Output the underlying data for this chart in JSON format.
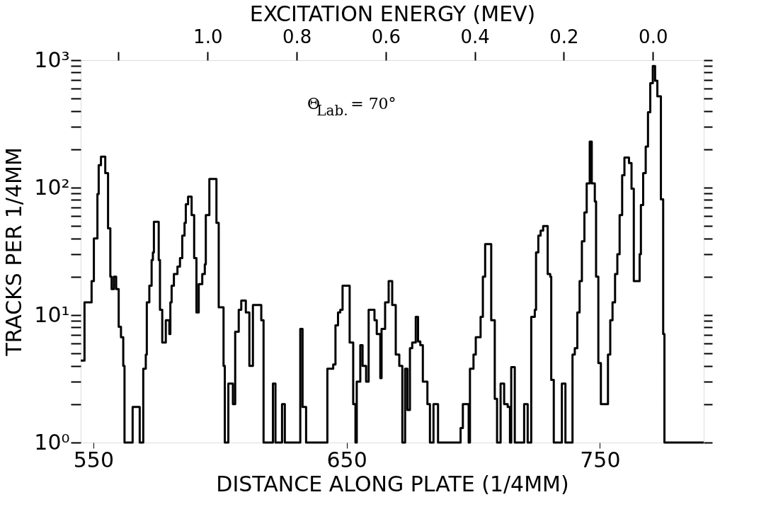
{
  "chart_data": {
    "type": "step",
    "x2label": "EXCITATION ENERGY (MEV)",
    "xlabel": "DISTANCE ALONG PLATE (1/4MM)",
    "ylabel": "TRACKS PER 1/4MM",
    "annotations": [
      "Θ$_{Lab.}$= 70°"
    ],
    "log": "y",
    "grid": false,
    "line_style": "solid",
    "color": "#000000",
    "xlim": [
      545,
      791
    ],
    "xticks": [
      550,
      650,
      750
    ],
    "x2lim": [
      1.285,
      -0.114
    ],
    "x2ticks": [
      {
        "value": 1.2,
        "label": null
      },
      {
        "value": 1.0,
        "label": "1.0"
      },
      {
        "value": 0.8,
        "label": "0.8"
      },
      {
        "value": 0.6,
        "label": "0.6"
      },
      {
        "value": 0.4,
        "label": "0.4"
      },
      {
        "value": 0.2,
        "label": "0.2"
      },
      {
        "value": 0.0,
        "label": "0.0"
      }
    ],
    "ylim": [
      1,
      1000
    ],
    "yticks": [
      {
        "value": 1,
        "label": "10⁰"
      },
      {
        "value": 2,
        "label": null
      },
      {
        "value": 3,
        "label": null
      },
      {
        "value": 4,
        "label": null
      },
      {
        "value": 5,
        "label": null
      },
      {
        "value": 6,
        "label": null
      },
      {
        "value": 7,
        "label": null
      },
      {
        "value": 8,
        "label": null
      },
      {
        "value": 9,
        "label": null
      },
      {
        "value": 10,
        "label": "10¹"
      },
      {
        "value": 20,
        "label": null
      },
      {
        "value": 30,
        "label": null
      },
      {
        "value": 40,
        "label": null
      },
      {
        "value": 50,
        "label": null
      },
      {
        "value": 60,
        "label": null
      },
      {
        "value": 70,
        "label": null
      },
      {
        "value": 80,
        "label": null
      },
      {
        "value": 90,
        "label": null
      },
      {
        "value": 100,
        "label": "10²"
      },
      {
        "value": 200,
        "label": null
      },
      {
        "value": 300,
        "label": null
      },
      {
        "value": 400,
        "label": null
      },
      {
        "value": 500,
        "label": null
      },
      {
        "value": 600,
        "label": null
      },
      {
        "value": 700,
        "label": null
      },
      {
        "value": 800,
        "label": null
      },
      {
        "value": 900,
        "label": null
      },
      {
        "value": 1000,
        "label": "10³"
      }
    ],
    "x": [
      545,
      546.5,
      549.3,
      550.2,
      551.6,
      552.1,
      553.0,
      554.7,
      555.8,
      556.7,
      557.2,
      558.1,
      559.0,
      560.0,
      560.9,
      561.8,
      562.3,
      565.5,
      568.3,
      569.7,
      570.7,
      571.1,
      572.1,
      573.0,
      573.5,
      573.9,
      575.8,
      576.3,
      577.2,
      578.6,
      580.0,
      580.4,
      580.9,
      581.8,
      583.2,
      584.2,
      585.1,
      586.0,
      586.5,
      587.4,
      588.8,
      589.8,
      590.7,
      591.6,
      593.0,
      594.0,
      594.4,
      595.8,
      598.6,
      599.5,
      601.4,
      601.9,
      603.3,
      605.1,
      606.0,
      607.4,
      608.4,
      610.2,
      611.6,
      613.0,
      616.3,
      617.2,
      620.9,
      621.9,
      624.5,
      625.6,
      631.7,
      632.6,
      634.0,
      642.4,
      644.7,
      645.6,
      646.6,
      647.5,
      648.4,
      651.2,
      652.6,
      653.5,
      654.0,
      655.4,
      656.3,
      657.7,
      658.7,
      661.0,
      661.9,
      663.3,
      663.8,
      665.2,
      666.6,
      668.0,
      669.4,
      670.8,
      672.0,
      673.1,
      674.0,
      675.0,
      675.9,
      677.3,
      678.2,
      679.1,
      680.1,
      681.9,
      682.9,
      684.3,
      686.1,
      695.0,
      695.9,
      698.2,
      698.7,
      700.1,
      701.0,
      702.9,
      703.8,
      704.7,
      707.1,
      708.5,
      709.4,
      710.8,
      712.2,
      713.6,
      714.5,
      715.0,
      716.4,
      720.1,
      721.5,
      722.9,
      724.3,
      724.8,
      725.7,
      726.6,
      727.6,
      729.4,
      730.4,
      730.8,
      731.8,
      735.0,
      736.4,
      739.2,
      740.1,
      741.1,
      742.0,
      742.9,
      743.9,
      744.8,
      746.0,
      746.8,
      748.0,
      748.5,
      749.4,
      750.4,
      753.2,
      754.1,
      755.0,
      756.0,
      756.9,
      757.8,
      758.8,
      759.7,
      761.5,
      762.5,
      763.4,
      765.7,
      766.2,
      767.1,
      768.1,
      769.0,
      769.9,
      770.9,
      771.8,
      772.7,
      774.1,
      775.0,
      775.5,
      791
    ],
    "values": [
      4.4,
      12.6,
      18.5,
      40,
      89,
      150,
      175,
      130,
      48,
      20,
      16,
      20,
      16,
      8.1,
      6.7,
      4.0,
      1,
      1.9,
      1,
      3.8,
      4.9,
      12.6,
      17,
      27,
      31,
      54,
      27,
      11,
      6.1,
      9.1,
      7.1,
      12.6,
      17,
      21,
      24,
      28,
      42,
      53,
      74,
      85,
      61,
      28,
      10.5,
      17.5,
      21,
      25,
      61,
      117,
      53,
      11.5,
      4.0,
      1,
      2.9,
      2.0,
      7.4,
      11,
      13,
      10.5,
      4.0,
      12,
      9.1,
      1,
      2.9,
      1,
      2.0,
      1,
      7.8,
      1.9,
      1,
      3.8,
      4.1,
      8.3,
      10.5,
      11,
      17,
      6.1,
      2.0,
      1,
      3.0,
      5.8,
      4.0,
      3.0,
      11,
      9.1,
      7.1,
      3.2,
      7.8,
      12.6,
      18.5,
      12,
      4.9,
      4.0,
      1,
      3.8,
      1.8,
      5.5,
      6.1,
      9.7,
      6.2,
      5.8,
      3.0,
      2.0,
      1,
      2.0,
      1,
      1.3,
      2.0,
      1,
      3.8,
      4.9,
      6.7,
      9.7,
      20,
      36,
      9.1,
      2.2,
      1,
      2.9,
      2.0,
      1.9,
      1,
      3.9,
      1,
      2.0,
      1,
      9.7,
      11,
      31,
      42,
      46,
      50,
      21,
      20,
      3.1,
      1,
      2.9,
      1,
      4.9,
      5.5,
      10.5,
      18.5,
      38,
      64,
      108,
      230,
      108,
      78,
      20,
      4.2,
      2.0,
      4.9,
      9.1,
      12.6,
      21,
      30,
      61,
      125,
      172,
      156,
      98,
      18.5,
      30,
      73,
      130,
      210,
      390,
      660,
      900,
      690,
      520,
      81,
      7.1,
      1,
      1
    ]
  }
}
